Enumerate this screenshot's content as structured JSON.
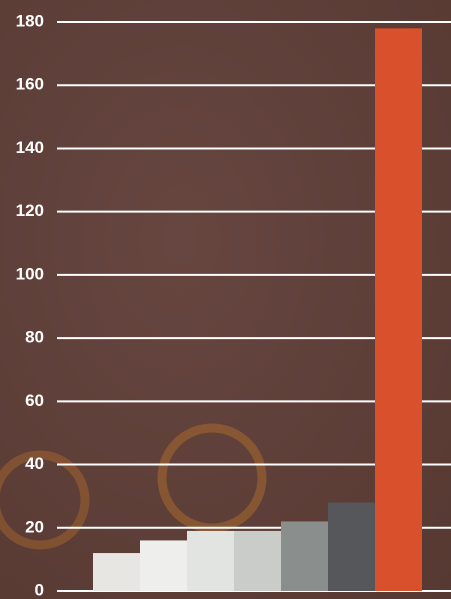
{
  "chart_data": {
    "type": "bar",
    "categories": [
      null,
      null,
      null,
      null,
      null,
      null,
      null
    ],
    "values": [
      12,
      16,
      19,
      19,
      22,
      28,
      178
    ],
    "colors": [
      "#e8e6e2",
      "#eeeeec",
      "#e2e4e2",
      "#c9ccc8",
      "#8a8f8d",
      "#55575a",
      "#d9502c"
    ],
    "ylim": [
      0,
      180
    ],
    "yticks": [
      0,
      20,
      40,
      60,
      80,
      100,
      120,
      140,
      160,
      180
    ],
    "grid": true
  }
}
